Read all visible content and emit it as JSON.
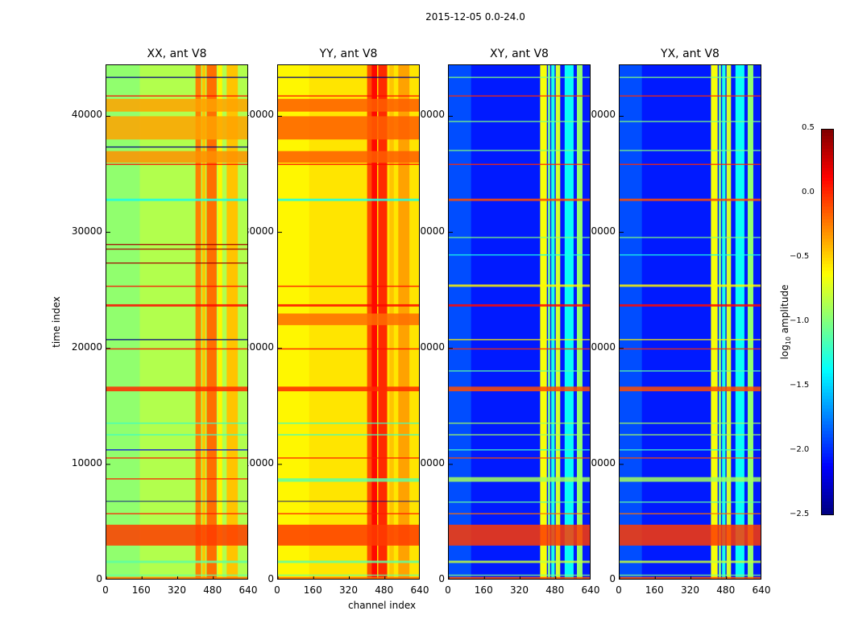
{
  "suptitle": "2015-12-05 0.0-24.0",
  "chart_data": {
    "type": "heatmap",
    "title": "2015-12-05 0.0-24.0",
    "xlabel": "channel index",
    "ylabel": "time index",
    "xlim": [
      0,
      640
    ],
    "ylim": [
      0,
      44400
    ],
    "xticks": [
      "0",
      "160",
      "320",
      "480",
      "640"
    ],
    "yticks": [
      "0",
      "10000",
      "20000",
      "30000",
      "40000"
    ],
    "colorbar": {
      "label": "log10 amplitude",
      "range": [
        -2.5,
        0.5
      ],
      "ticks": [
        "0.5",
        "0.0",
        "−0.5",
        "−1.0",
        "−1.5",
        "−2.0",
        "−2.5"
      ],
      "colormap": "jet"
    },
    "panels": [
      {
        "title": "XX, ant V8",
        "base": -0.85,
        "channel_bands": [
          [
            0,
            150,
            -0.95
          ],
          [
            400,
            425,
            -0.25
          ],
          [
            430,
            445,
            -0.45
          ],
          [
            450,
            495,
            -0.2
          ],
          [
            500,
            520,
            -0.6
          ],
          [
            540,
            590,
            -0.45
          ]
        ],
        "time_bands": [
          [
            0,
            300,
            -0.2
          ],
          [
            400,
            500,
            -1.1
          ],
          [
            1500,
            1700,
            -1.1
          ],
          [
            3000,
            4800,
            -0.05
          ],
          [
            5700,
            5800,
            0.05
          ],
          [
            6800,
            6850,
            -2.5
          ],
          [
            8700,
            8800,
            0.05
          ],
          [
            10500,
            10600,
            0.05
          ],
          [
            11200,
            11300,
            -2.2
          ],
          [
            12500,
            12600,
            -1.2
          ],
          [
            13500,
            13600,
            -1.2
          ],
          [
            16300,
            16700,
            0.0
          ],
          [
            19900,
            20000,
            0.1
          ],
          [
            20700,
            20800,
            -2.5
          ],
          [
            23600,
            23800,
            0.1
          ],
          [
            25300,
            25400,
            0.1
          ],
          [
            27300,
            27400,
            0.4
          ],
          [
            28500,
            28600,
            0.4
          ],
          [
            28900,
            29000,
            0.4
          ],
          [
            32700,
            32900,
            -1.3
          ],
          [
            35800,
            35900,
            0.1
          ],
          [
            36000,
            37000,
            -0.3
          ],
          [
            37300,
            37400,
            -2.5
          ],
          [
            38000,
            40000,
            -0.35
          ],
          [
            40400,
            41500,
            -0.35
          ],
          [
            41700,
            41800,
            0.1
          ],
          [
            43300,
            43400,
            -2.5
          ]
        ]
      },
      {
        "title": "YY, ant V8",
        "base": -0.55,
        "channel_bands": [
          [
            0,
            140,
            -0.6
          ],
          [
            400,
            420,
            -0.1
          ],
          [
            420,
            445,
            0.1
          ],
          [
            450,
            490,
            0.0
          ],
          [
            500,
            520,
            -0.45
          ],
          [
            540,
            590,
            -0.35
          ]
        ],
        "time_bands": [
          [
            0,
            300,
            -0.2
          ],
          [
            400,
            500,
            -1.1
          ],
          [
            1500,
            1700,
            -1.1
          ],
          [
            3000,
            4800,
            -0.05
          ],
          [
            5700,
            5800,
            0.05
          ],
          [
            6800,
            6850,
            -2.5
          ],
          [
            8500,
            8800,
            -1.1
          ],
          [
            10500,
            10600,
            0.05
          ],
          [
            12500,
            12600,
            -1.2
          ],
          [
            13500,
            13600,
            -1.2
          ],
          [
            16300,
            16700,
            0.0
          ],
          [
            19900,
            20000,
            0.1
          ],
          [
            22000,
            23000,
            -0.2
          ],
          [
            23600,
            23800,
            0.1
          ],
          [
            25300,
            25400,
            0.1
          ],
          [
            32700,
            32900,
            -1.3
          ],
          [
            35800,
            35900,
            0.1
          ],
          [
            36000,
            37000,
            -0.15
          ],
          [
            38000,
            40000,
            -0.15
          ],
          [
            40400,
            41500,
            -0.15
          ],
          [
            41700,
            41800,
            0.1
          ],
          [
            43300,
            43400,
            -2.5
          ]
        ]
      },
      {
        "title": "XY, ant V8",
        "base": -2.05,
        "channel_bands": [
          [
            0,
            100,
            -1.9
          ],
          [
            410,
            440,
            -0.65
          ],
          [
            445,
            455,
            -1.0
          ],
          [
            460,
            475,
            -1.3
          ],
          [
            480,
            500,
            -0.75
          ],
          [
            520,
            560,
            -1.35
          ],
          [
            575,
            600,
            -0.95
          ]
        ],
        "time_bands": [
          [
            0,
            300,
            -0.1
          ],
          [
            400,
            500,
            -1.0
          ],
          [
            1500,
            1700,
            -0.8
          ],
          [
            3000,
            4800,
            -0.05
          ],
          [
            5700,
            5800,
            -0.2
          ],
          [
            6700,
            6800,
            -1.1
          ],
          [
            8500,
            8900,
            -0.9
          ],
          [
            10500,
            10600,
            -0.1
          ],
          [
            11200,
            11300,
            -1.2
          ],
          [
            12500,
            12600,
            -0.9
          ],
          [
            13500,
            13600,
            -0.9
          ],
          [
            16300,
            16700,
            -0.1
          ],
          [
            18000,
            18100,
            -1.1
          ],
          [
            19900,
            20000,
            0.0
          ],
          [
            20700,
            20800,
            -0.6
          ],
          [
            23600,
            23800,
            0.1
          ],
          [
            25300,
            25500,
            -0.6
          ],
          [
            28000,
            28100,
            -1.3
          ],
          [
            29500,
            29600,
            -1.0
          ],
          [
            32700,
            32900,
            -0.1
          ],
          [
            35800,
            35900,
            0.0
          ],
          [
            37000,
            37100,
            -1.0
          ],
          [
            39500,
            39600,
            -1.0
          ],
          [
            41700,
            41800,
            0.0
          ],
          [
            43300,
            43400,
            -1.0
          ]
        ]
      },
      {
        "title": "YX, ant V8",
        "base": -2.05,
        "channel_bands": [
          [
            0,
            100,
            -1.9
          ],
          [
            410,
            440,
            -0.65
          ],
          [
            445,
            455,
            -1.0
          ],
          [
            460,
            475,
            -1.3
          ],
          [
            480,
            500,
            -0.75
          ],
          [
            520,
            560,
            -1.35
          ],
          [
            575,
            600,
            -0.95
          ]
        ],
        "time_bands": [
          [
            0,
            300,
            -0.1
          ],
          [
            400,
            500,
            -1.0
          ],
          [
            1500,
            1700,
            -0.8
          ],
          [
            3000,
            4800,
            -0.05
          ],
          [
            5700,
            5800,
            -0.2
          ],
          [
            6700,
            6800,
            -1.1
          ],
          [
            8500,
            8900,
            -0.9
          ],
          [
            10500,
            10600,
            -0.1
          ],
          [
            11200,
            11300,
            -1.2
          ],
          [
            12500,
            12600,
            -0.9
          ],
          [
            13500,
            13600,
            -0.9
          ],
          [
            16300,
            16700,
            -0.1
          ],
          [
            18000,
            18100,
            -1.1
          ],
          [
            19900,
            20000,
            0.0
          ],
          [
            20700,
            20800,
            -0.6
          ],
          [
            23600,
            23800,
            0.1
          ],
          [
            25300,
            25500,
            -0.6
          ],
          [
            28000,
            28100,
            -1.3
          ],
          [
            29500,
            29600,
            -1.0
          ],
          [
            32700,
            32900,
            -0.1
          ],
          [
            35800,
            35900,
            0.0
          ],
          [
            37000,
            37100,
            -1.0
          ],
          [
            39500,
            39600,
            -1.0
          ],
          [
            41700,
            41800,
            0.0
          ],
          [
            43300,
            43400,
            -1.0
          ]
        ]
      }
    ]
  }
}
